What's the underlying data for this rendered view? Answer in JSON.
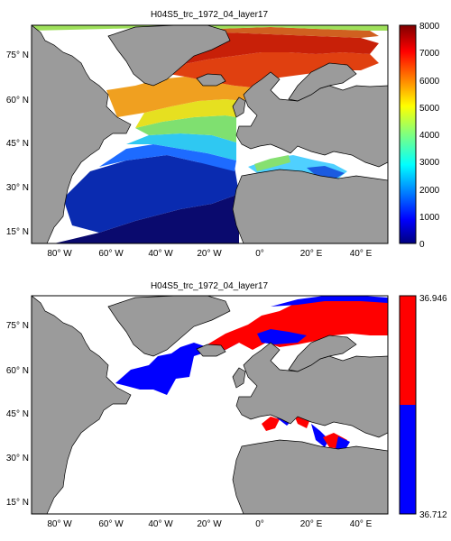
{
  "figure": {
    "panels": [
      {
        "title": "H04S5_trc_1972_04_layer17",
        "map": {
          "lon_range": [
            -90,
            50
          ],
          "lat_range": [
            10,
            85
          ],
          "lon_ticks": [
            "80° W",
            "60° W",
            "40° W",
            "20° W",
            "0°",
            "20° E",
            "40° E"
          ],
          "lat_ticks": [
            "75° N",
            "60° N",
            "45° N",
            "30° N",
            "15° N"
          ],
          "land_color": "#9b9b9b",
          "ocean_nodata_color": "#ffffff"
        },
        "colorbar": {
          "type": "continuous",
          "colormap": "jet",
          "min": 0,
          "max": 8000,
          "ticks": [
            "0",
            "1000",
            "2000",
            "3000",
            "4000",
            "5000",
            "6000",
            "7000",
            "8000"
          ]
        }
      },
      {
        "title": "H04S5_trc_1972_04_layer17",
        "map": {
          "lon_range": [
            -90,
            50
          ],
          "lat_range": [
            10,
            85
          ],
          "lon_ticks": [
            "80° W",
            "60° W",
            "40° W",
            "20° W",
            "0°",
            "20° E",
            "40° E"
          ],
          "lat_ticks": [
            "75° N",
            "60° N",
            "45° N",
            "30° N",
            "15° N"
          ],
          "land_color": "#9b9b9b",
          "ocean_nodata_color": "#ffffff"
        },
        "colorbar": {
          "type": "binary",
          "colors": [
            "#0000ff",
            "#ff0000"
          ],
          "max_label": "36.946",
          "min_label": "36.712"
        }
      }
    ]
  }
}
